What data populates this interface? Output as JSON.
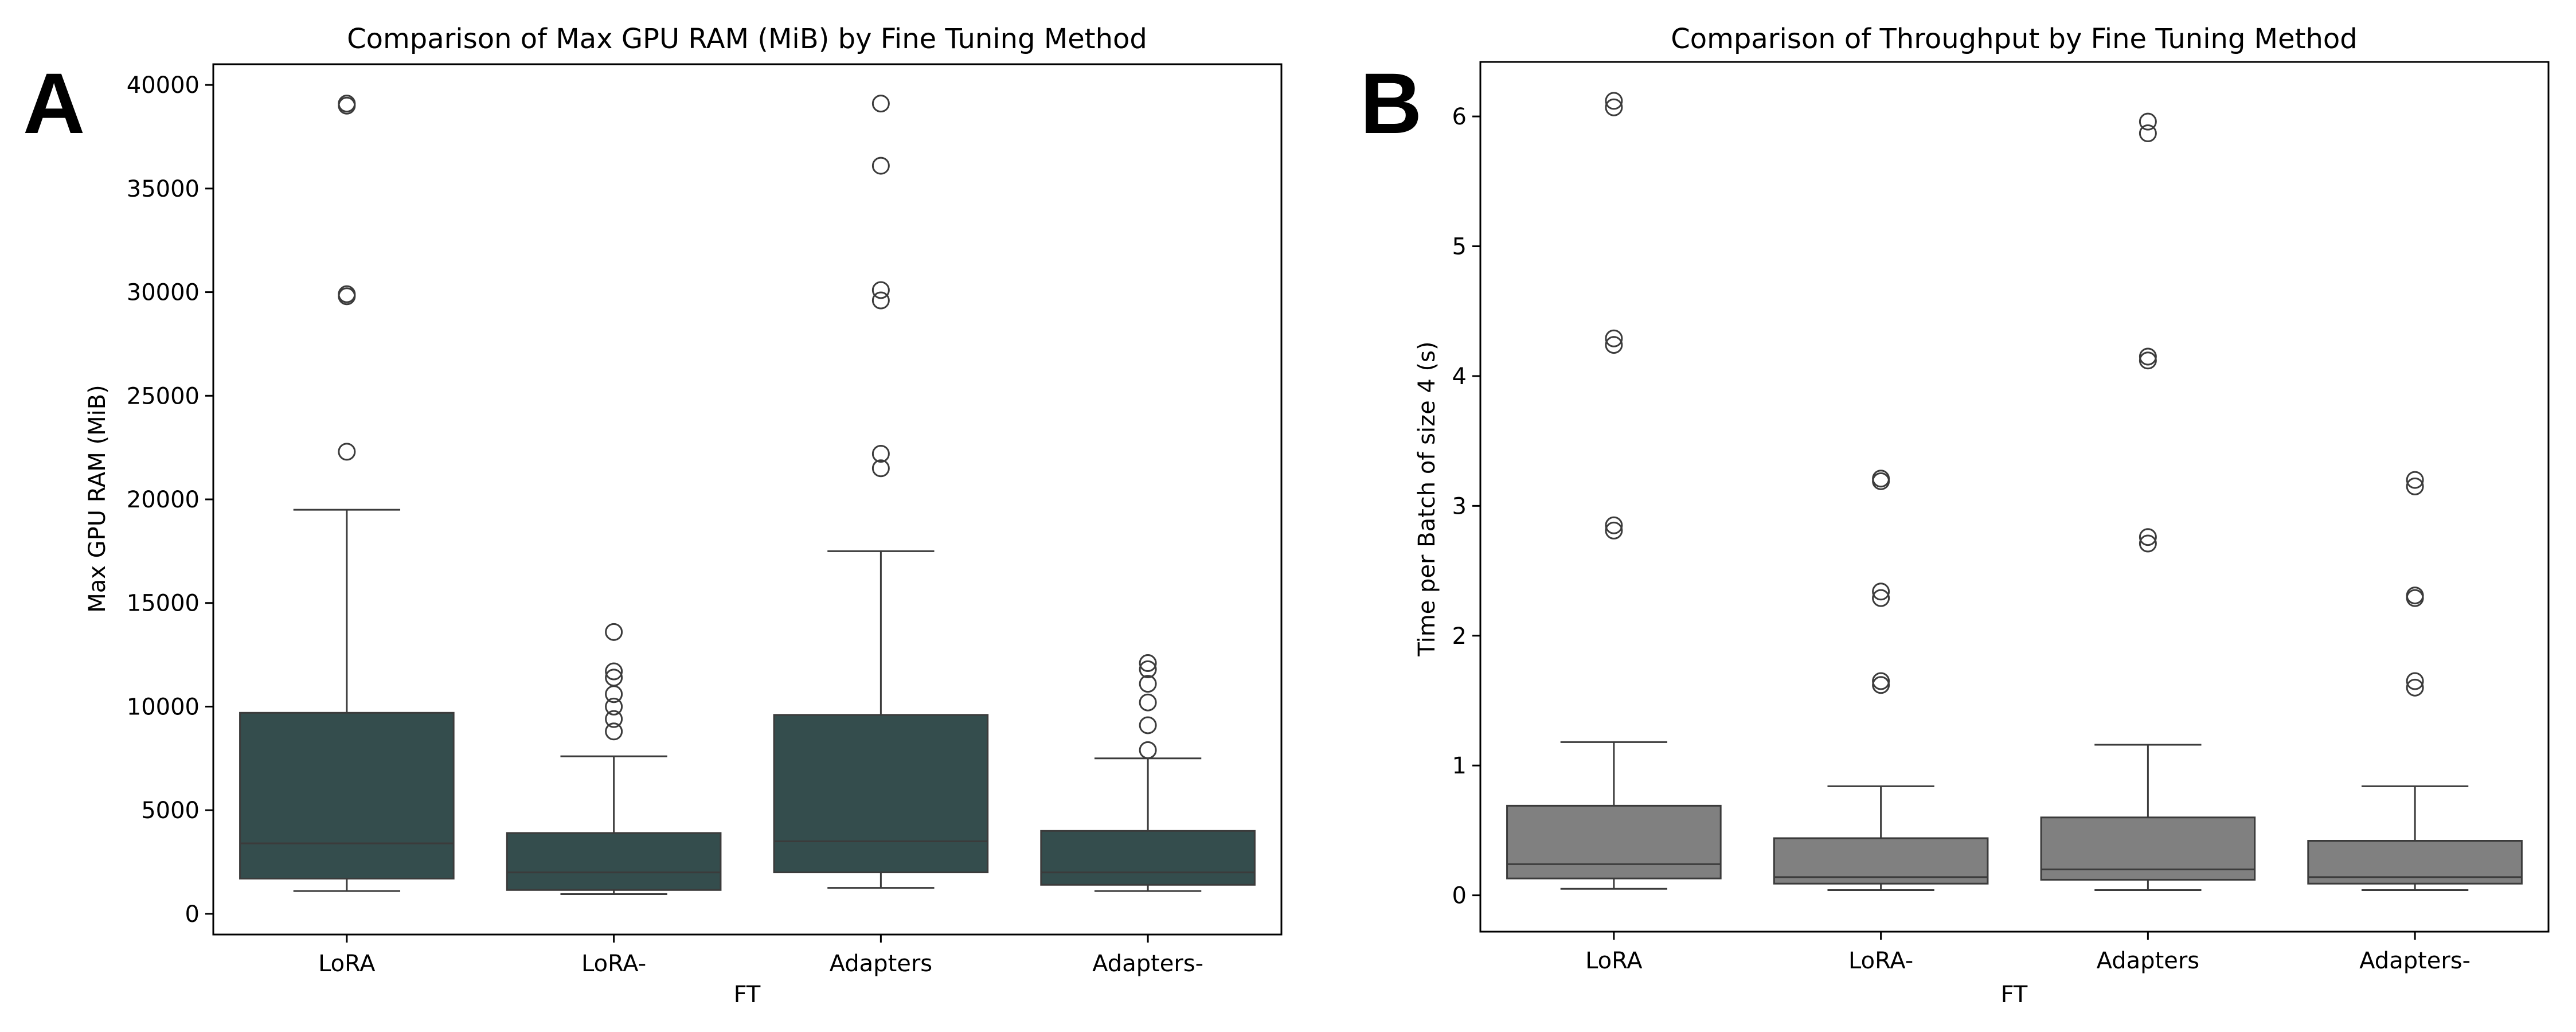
{
  "chart_data": [
    {
      "panel": "A",
      "type": "box",
      "title": "Comparison of Max GPU RAM (MiB) by Fine Tuning Method",
      "xlabel": "FT",
      "ylabel": "Max GPU RAM (MiB)",
      "ylim": [
        -1000,
        41000
      ],
      "yticks": [
        0,
        5000,
        10000,
        15000,
        20000,
        25000,
        30000,
        35000,
        40000
      ],
      "ytick_labels": [
        "0",
        "5000",
        "10000",
        "15000",
        "20000",
        "25000",
        "30000",
        "35000",
        "40000"
      ],
      "box_color": "#344d4d",
      "categories": [
        "LoRA",
        "LoRA-",
        "Adapters",
        "Adapters-"
      ],
      "boxes": [
        {
          "whisker_low": 1100,
          "q1": 1700,
          "median": 3400,
          "q3": 9700,
          "whisker_high": 19500,
          "outliers": [
            22300,
            29800,
            29900,
            39000,
            39100
          ]
        },
        {
          "whisker_low": 950,
          "q1": 1150,
          "median": 2000,
          "q3": 3900,
          "whisker_high": 7600,
          "outliers": [
            8800,
            9400,
            10000,
            10600,
            11400,
            11700,
            13600
          ]
        },
        {
          "whisker_low": 1250,
          "q1": 2000,
          "median": 3500,
          "q3": 9600,
          "whisker_high": 17500,
          "outliers": [
            21500,
            22200,
            29600,
            30100,
            36100,
            39100
          ]
        },
        {
          "whisker_low": 1100,
          "q1": 1400,
          "median": 2000,
          "q3": 4000,
          "whisker_high": 7500,
          "outliers": [
            7900,
            9100,
            10200,
            11100,
            11800,
            12100
          ]
        }
      ]
    },
    {
      "panel": "B",
      "type": "box",
      "title": "Comparison of Throughput by Fine Tuning Method",
      "xlabel": "FT",
      "ylabel": "Time per Batch of size 4 (s)",
      "ylim": [
        -0.28,
        6.42
      ],
      "yticks": [
        0,
        1,
        2,
        3,
        4,
        5,
        6
      ],
      "ytick_labels": [
        "0",
        "1",
        "2",
        "3",
        "4",
        "5",
        "6"
      ],
      "box_color": "#808080",
      "categories": [
        "LoRA",
        "LoRA-",
        "Adapters",
        "Adapters-"
      ],
      "boxes": [
        {
          "whisker_low": 0.05,
          "q1": 0.13,
          "median": 0.24,
          "q3": 0.69,
          "whisker_high": 1.18,
          "outliers": [
            2.81,
            2.85,
            4.24,
            4.29,
            6.07,
            6.12
          ]
        },
        {
          "whisker_low": 0.04,
          "q1": 0.09,
          "median": 0.14,
          "q3": 0.44,
          "whisker_high": 0.84,
          "outliers": [
            1.62,
            1.65,
            2.29,
            2.34,
            3.19,
            3.21
          ]
        },
        {
          "whisker_low": 0.04,
          "q1": 0.12,
          "median": 0.2,
          "q3": 0.6,
          "whisker_high": 1.16,
          "outliers": [
            2.71,
            2.76,
            4.12,
            4.15,
            5.87,
            5.96
          ]
        },
        {
          "whisker_low": 0.04,
          "q1": 0.09,
          "median": 0.14,
          "q3": 0.42,
          "whisker_high": 0.84,
          "outliers": [
            1.6,
            1.65,
            2.29,
            2.31,
            3.15,
            3.2
          ]
        }
      ]
    }
  ]
}
